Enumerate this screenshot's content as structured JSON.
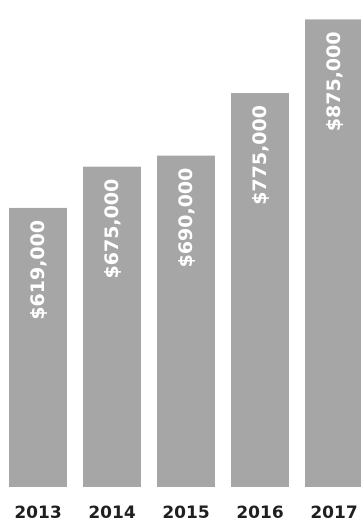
{
  "chart_data": {
    "type": "bar",
    "title": "",
    "xlabel": "",
    "ylabel": "",
    "categories": [
      "2013",
      "2014",
      "2015",
      "2016",
      "2017"
    ],
    "values": [
      619000,
      675000,
      690000,
      775000,
      875000
    ],
    "data_labels": [
      "$619,000",
      "$675,000",
      "$690,000",
      "$775,000",
      "$875,000"
    ],
    "ylim": [
      240000,
      900000
    ],
    "grid": false,
    "legend": "none",
    "colors": {
      "bar": "#a6a6a6",
      "data_label": "#ffffff",
      "tick_label": "#1f1f1f"
    }
  }
}
